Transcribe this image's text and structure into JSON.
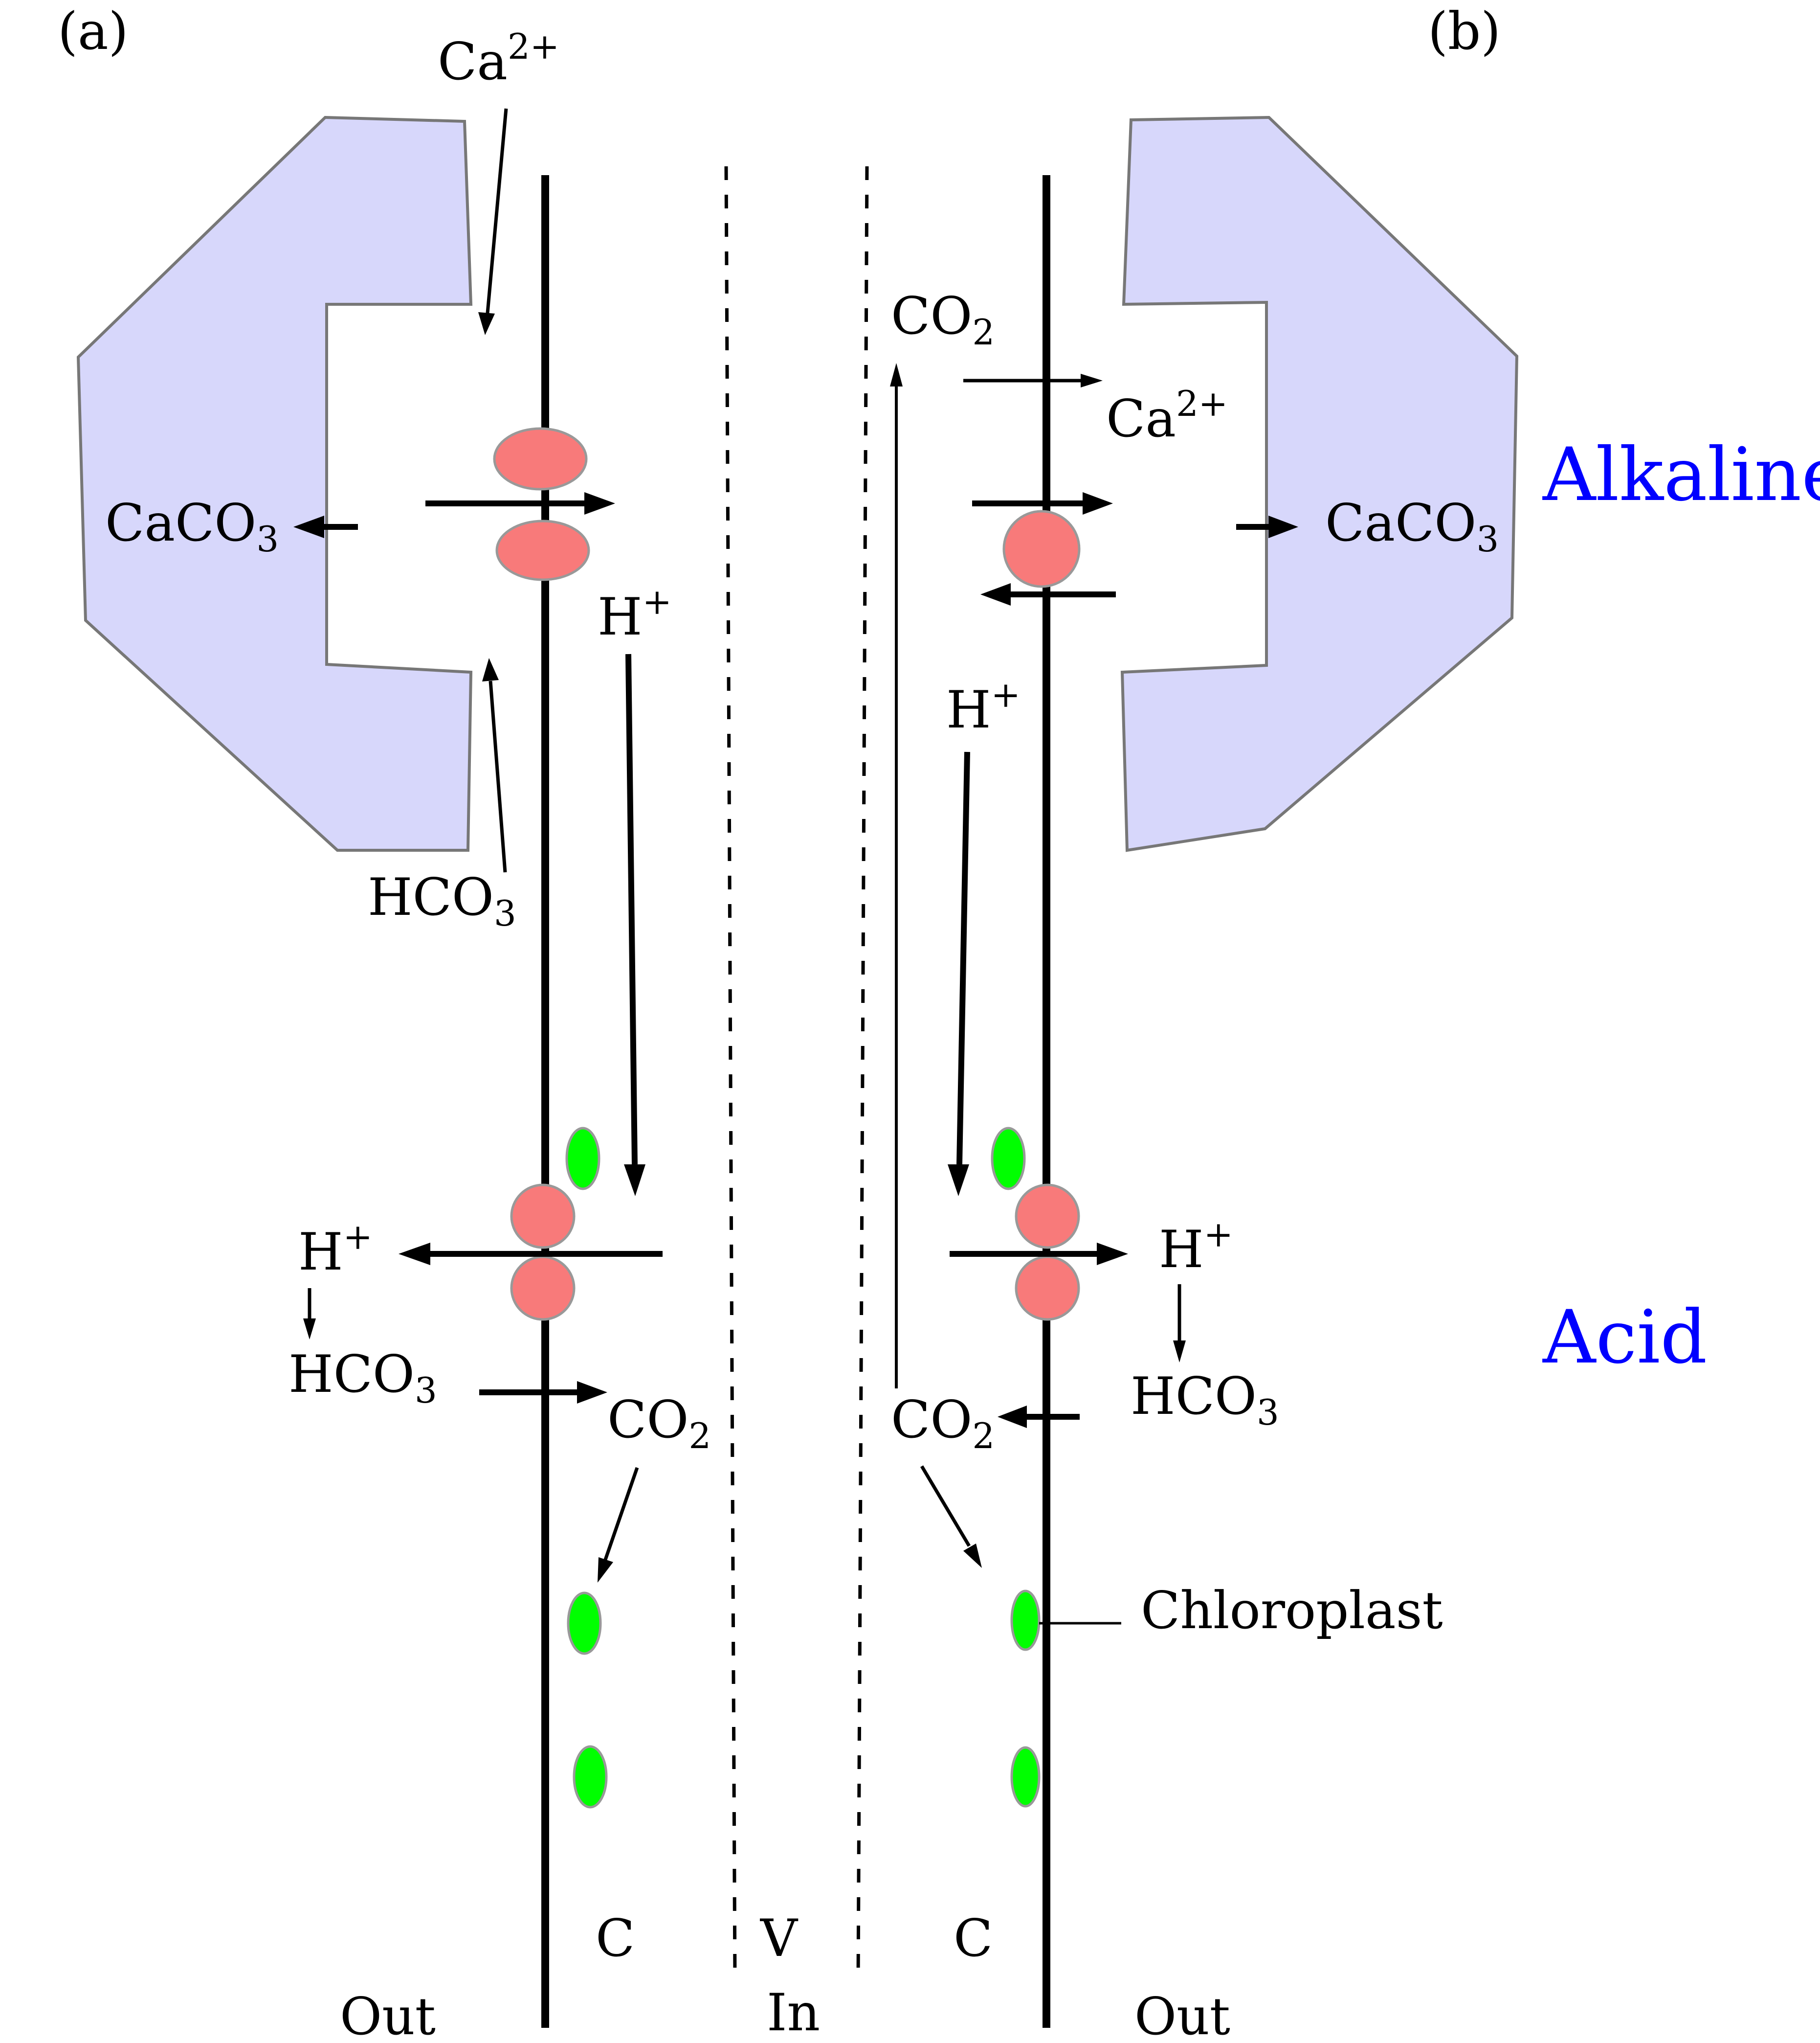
{
  "panels": {
    "a": "(a)",
    "b": "(b)"
  },
  "regions": {
    "alkaline": "Alkaline",
    "acid": "Acid",
    "region_color": "#0000ff"
  },
  "compartments": {
    "c_left": "C",
    "v": "V",
    "c_right": "C",
    "out_left": "Out",
    "in": "In",
    "out_right": "Out"
  },
  "left": {
    "ca_top": {
      "base": "Ca",
      "sup": "2+"
    },
    "caco3": {
      "base": "CaCO",
      "sub": "3"
    },
    "hco3_top": {
      "base": "HCO",
      "sub": "3"
    },
    "h_mid": {
      "base": "H",
      "sup": "+"
    },
    "h_low": {
      "base": "H",
      "sup": "+"
    },
    "hco3_low": {
      "base": "HCO",
      "sub": "3"
    },
    "co2_low": {
      "base": "CO",
      "sub": "2"
    }
  },
  "right": {
    "co2_top": {
      "base": "CO",
      "sub": "2"
    },
    "ca_top": {
      "base": "Ca",
      "sup": "2+"
    },
    "caco3": {
      "base": "CaCO",
      "sub": "3"
    },
    "h_mid": {
      "base": "H",
      "sup": "+"
    },
    "h_low": {
      "base": "H",
      "sup": "+"
    },
    "hco3_low": {
      "base": "HCO",
      "sub": "3"
    },
    "co2_low": {
      "base": "CO",
      "sub": "2"
    },
    "chloroplast": "Chloroplast"
  },
  "colors": {
    "deposit_fill": "#d7d7fb",
    "deposit_stroke": "#777777",
    "transporter": "#f87a7a",
    "chloroplast": "#00ff00",
    "organelle_stroke": "#999999"
  }
}
